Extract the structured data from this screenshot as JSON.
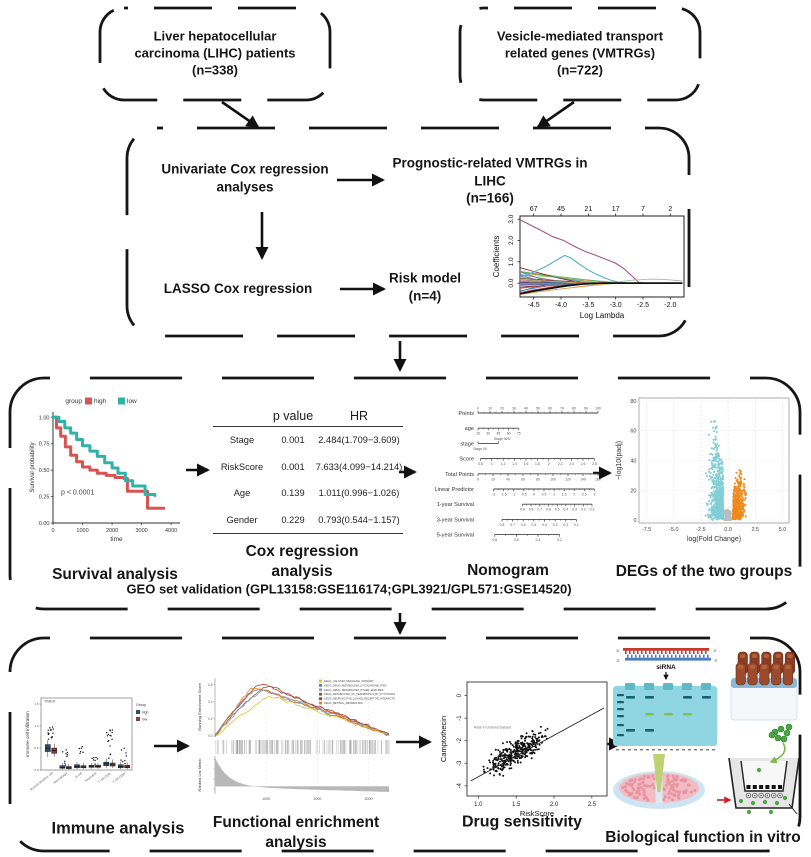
{
  "nodes": {
    "lihc": "Liver hepatocellular\ncarcinoma (LIHC) patients\n(n=338)",
    "vmtrg": "Vesicle-mediated transport\nrelated genes (VMTRGs)\n(n=722)",
    "univariate": "Univariate Cox regression\nanalyses",
    "prognostic": "Prognostic-related VMTRGs in LIHC\n(n=166)",
    "lasso": "LASSO Cox regression",
    "risk_model": "Risk model\n(n=4)"
  },
  "captions": {
    "survival": "Survival analysis",
    "cox": "Cox regression\nanalysis",
    "nomogram": "Nomogram",
    "degs": "DEGs of the two groups",
    "geo": "GEO set validation (GPL13158:GSE116174;GPL3921/GPL571:GSE14520)",
    "immune": "Immune analysis",
    "enrichment": "Functional enrichment\nanalysis",
    "drug": "Drug sensitivity",
    "invitro": "Biological function in vitro"
  },
  "cox_table": {
    "headers": [
      "p value",
      "HR"
    ],
    "rows": [
      {
        "var": "Stage",
        "p": "0.001",
        "hr": "2.484(1.709−3.609)"
      },
      {
        "var": "RiskScore",
        "p": "0.001",
        "hr": "7.633(4.099−14.214)"
      },
      {
        "var": "Age",
        "p": "0.139",
        "hr": "1.011(0.996−1.026)"
      },
      {
        "var": "Gender",
        "p": "0.229",
        "hr": "0.793(0.544−1.157)"
      }
    ]
  },
  "invitro": {
    "sirna": "siRNA",
    "five_prime": "5'",
    "three_prime": "3'"
  },
  "chart_data": [
    {
      "id": "lasso",
      "type": "line",
      "xlabel": "Log Lambda",
      "ylabel": "Coefficients",
      "top_axis": [
        "67",
        "45",
        "21",
        "17",
        "7",
        "2"
      ],
      "x_ticks": [
        "-4.5",
        "-4.0",
        "-3.5",
        "-3.0",
        "-2.5",
        "-2.0"
      ],
      "y_ticks": [
        "0.0",
        "1.0",
        "2.0",
        "3.0"
      ],
      "xlim": [
        -4.75,
        -1.75
      ],
      "ylim": [
        -0.65,
        3.15
      ],
      "noise_lines": 42,
      "palette": [
        "#777777",
        "#c44e52",
        "#4c72b0",
        "#55a868",
        "#8172b2",
        "#ccb974",
        "#64b5cd",
        "#d65f5f",
        "#2f7ed8",
        "#8bbc21",
        "#1aadce",
        "#910000",
        "#492970",
        "#f28f43",
        "#77a1e5",
        "#c42525",
        "#a6c96a",
        "#3b6e8f"
      ],
      "series": [
        {
          "name": "top-coefficient",
          "color": "#a8538e",
          "width": 1.1,
          "points": [
            [
              -4.75,
              2.97
            ],
            [
              -4.55,
              2.72
            ],
            [
              -4.35,
              2.45
            ],
            [
              -4.15,
              2.18
            ],
            [
              -3.95,
              2.0
            ],
            [
              -3.75,
              1.72
            ],
            [
              -3.55,
              1.48
            ],
            [
              -3.38,
              1.32
            ],
            [
              -3.18,
              1.12
            ],
            [
              -3.0,
              0.93
            ],
            [
              -2.85,
              0.68
            ],
            [
              -2.7,
              0.33
            ],
            [
              -2.58,
              0.04
            ],
            [
              -2.5,
              0.0
            ],
            [
              -1.78,
              0.0
            ]
          ]
        },
        {
          "name": "second-coefficient",
          "color": "#4fb2cd",
          "width": 1.1,
          "points": [
            [
              -4.75,
              0.3
            ],
            [
              -4.5,
              0.52
            ],
            [
              -4.28,
              0.78
            ],
            [
              -4.08,
              1.08
            ],
            [
              -3.93,
              1.3
            ],
            [
              -3.82,
              1.18
            ],
            [
              -3.68,
              0.92
            ],
            [
              -3.52,
              0.65
            ],
            [
              -3.38,
              0.45
            ],
            [
              -3.22,
              0.27
            ],
            [
              -3.08,
              0.13
            ],
            [
              -2.92,
              0.04
            ],
            [
              -2.78,
              0.0
            ],
            [
              -1.78,
              0.0
            ]
          ]
        },
        {
          "name": "late-coefficient",
          "color": "#9fbf9a",
          "width": 0.9,
          "points": [
            [
              -3.05,
              0.02
            ],
            [
              -2.7,
              0.14
            ],
            [
              -2.35,
              0.19
            ],
            [
              -2.05,
              0.16
            ],
            [
              -1.78,
              0.1
            ]
          ]
        },
        {
          "name": "negative-path",
          "color": "#111111",
          "width": 1.8,
          "points": [
            [
              -4.75,
              -0.5
            ],
            [
              -4.5,
              -0.37
            ],
            [
              -4.2,
              -0.24
            ],
            [
              -3.9,
              -0.12
            ],
            [
              -3.6,
              -0.04
            ],
            [
              -3.3,
              0.0
            ],
            [
              -1.78,
              0.0
            ]
          ]
        }
      ]
    },
    {
      "id": "km",
      "type": "line",
      "xlabel": "time",
      "ylabel": "Survival probability",
      "legend_title": "group",
      "pvalue": "p < 0.0001",
      "x_ticks": [
        0,
        1000,
        2000,
        3000,
        4000
      ],
      "y_ticks": [
        "0.00",
        "0.25",
        "0.50",
        "0.75",
        "1.00"
      ],
      "series": [
        {
          "name": "high",
          "color": "#d95353",
          "points": [
            [
              0,
              1.0
            ],
            [
              120,
              0.9
            ],
            [
              260,
              0.82
            ],
            [
              420,
              0.72
            ],
            [
              600,
              0.64
            ],
            [
              800,
              0.58
            ],
            [
              1000,
              0.53
            ],
            [
              1250,
              0.5
            ],
            [
              1500,
              0.47
            ],
            [
              1800,
              0.45
            ],
            [
              2100,
              0.43
            ],
            [
              2400,
              0.42
            ],
            [
              2520,
              0.3
            ],
            [
              3100,
              0.3
            ],
            [
              3200,
              0.14
            ],
            [
              3750,
              0.14
            ]
          ]
        },
        {
          "name": "low",
          "color": "#2fb3a9",
          "points": [
            [
              0,
              1.0
            ],
            [
              200,
              0.96
            ],
            [
              400,
              0.9
            ],
            [
              600,
              0.85
            ],
            [
              800,
              0.79
            ],
            [
              1000,
              0.73
            ],
            [
              1250,
              0.68
            ],
            [
              1500,
              0.63
            ],
            [
              1750,
              0.57
            ],
            [
              2000,
              0.52
            ],
            [
              2200,
              0.47
            ],
            [
              2450,
              0.4
            ],
            [
              2700,
              0.35
            ],
            [
              3050,
              0.35
            ],
            [
              3120,
              0.27
            ],
            [
              3450,
              0.26
            ]
          ]
        }
      ]
    },
    {
      "id": "nomogram",
      "type": "nomogram",
      "rows": [
        {
          "label": "Points",
          "span": [
            0.0,
            1.0
          ],
          "above": true,
          "ticks": [
            "0",
            "10",
            "20",
            "30",
            "40",
            "50",
            "60",
            "70",
            "80",
            "90",
            "100"
          ]
        },
        {
          "label": "age",
          "span": [
            0.0,
            0.34
          ],
          "ticks": [
            "15",
            "30",
            "45",
            "60",
            "75"
          ]
        },
        {
          "label": "stage",
          "span": [
            0.0,
            0.17
          ],
          "ticks": [],
          "above_text": "Stage III/IV",
          "below_text": "Stage I/II"
        },
        {
          "label": "Score",
          "span": [
            0.02,
            0.97
          ],
          "ticks": [
            "0.8",
            "1",
            "1.2",
            "1.4",
            "1.6",
            "1.8",
            "2",
            "2.2",
            "2.4",
            "2.6",
            "2.8"
          ]
        },
        {
          "label": "Total Points",
          "span": [
            0.0,
            1.0
          ],
          "ticks": [
            "0",
            "20",
            "40",
            "60",
            "80",
            "100",
            "120",
            "140",
            "160"
          ]
        },
        {
          "label": "Linear Predictor",
          "span": [
            0.13,
            0.97
          ],
          "ticks": [
            "-2",
            "-1.5",
            "-1",
            "-0.5",
            "0",
            "0.5",
            "1",
            "1.5",
            "2",
            "2.5",
            "3"
          ]
        },
        {
          "label": "1-year Survival",
          "span": [
            0.37,
            0.95
          ],
          "ticks": [
            "0.9",
            "0.8",
            "0.7",
            "0.6",
            "0.5",
            "0.4",
            "0.3",
            "0.2",
            "0.1"
          ]
        },
        {
          "label": "3-year Survival",
          "span": [
            0.2,
            0.82
          ],
          "ticks": [
            "0.8",
            "0.7",
            "0.6",
            "0.5",
            "0.4",
            "0.3",
            "0.2",
            "0.1"
          ]
        },
        {
          "label": "5-year Survival",
          "span": [
            0.14,
            0.68
          ],
          "ticks": [
            "0.8",
            "0.6",
            "0.4",
            "0.2"
          ]
        }
      ]
    },
    {
      "id": "volcano",
      "type": "scatter",
      "xlabel": "log(Fold Change)",
      "ylabel": "−log10(padj)",
      "x_ticks": [
        "-7.5",
        "-5.0",
        "-2.5",
        "0.0",
        "2.5",
        "5.0"
      ],
      "y_ticks": [
        "0",
        "20",
        "40",
        "60",
        "80"
      ],
      "xlim": [
        -8.2,
        5.6
      ],
      "ylim": [
        -2,
        82
      ],
      "groups": [
        {
          "name": "down",
          "color": "#82ced6",
          "count": 760
        },
        {
          "name": "up",
          "color": "#ee8a1e",
          "count": 430
        },
        {
          "name": "not-significant",
          "color": "#bcbcbc",
          "count": 260
        }
      ]
    },
    {
      "id": "immune",
      "type": "box",
      "ylabel": "immune cell infiltration",
      "panel": "TIMER",
      "legend_title": "Group",
      "legend": [
        {
          "name": "high",
          "color": "#2e4a6e"
        },
        {
          "name": "low",
          "color": "#8c3a44"
        }
      ],
      "y_ticks": [
        "0.0",
        "0.5",
        "1.0",
        "1.5"
      ],
      "categories": [
        "Myeloid dendritic cell",
        "Macrophage",
        "B cell",
        "Neutrophil",
        "T cell CD4+",
        "T cell CD8+"
      ],
      "boxes": [
        {
          "high": [
            0.3,
            0.42,
            0.5,
            0.58,
            0.68
          ],
          "low": [
            0.3,
            0.38,
            0.44,
            0.5,
            0.6
          ],
          "out_max": 1.0,
          "out_n": 14
        },
        {
          "high": [
            0.01,
            0.04,
            0.06,
            0.1,
            0.16
          ],
          "low": [
            0.01,
            0.03,
            0.05,
            0.08,
            0.14
          ],
          "out_max": 0.5,
          "out_n": 9
        },
        {
          "high": [
            0.02,
            0.05,
            0.08,
            0.12,
            0.18
          ],
          "low": [
            0.02,
            0.05,
            0.07,
            0.1,
            0.16
          ],
          "out_max": 0.62,
          "out_n": 6
        },
        {
          "high": [
            0.03,
            0.06,
            0.08,
            0.11,
            0.16
          ],
          "low": [
            0.03,
            0.06,
            0.08,
            0.11,
            0.16
          ],
          "out_max": 0.3,
          "out_n": 7
        },
        {
          "high": [
            0.05,
            0.1,
            0.14,
            0.18,
            0.26
          ],
          "low": [
            0.05,
            0.09,
            0.12,
            0.16,
            0.24
          ],
          "out_max": 0.92,
          "out_n": 16
        },
        {
          "high": [
            0.02,
            0.05,
            0.08,
            0.12,
            0.18
          ],
          "low": [
            0.02,
            0.05,
            0.07,
            0.11,
            0.17
          ],
          "out_max": 0.5,
          "out_n": 8
        }
      ]
    },
    {
      "id": "gsea",
      "type": "line",
      "ylabel_top": "Running Enrichment Score",
      "ylabel_bottom": "Ranked List Metric",
      "x_ticks": [
        "1000",
        "2000",
        "3000"
      ],
      "y_ticks_top": [
        "0.0",
        "0.2",
        "0.4",
        "0.6"
      ],
      "x_max": 3400,
      "legend": [
        {
          "name": "KEGG_CALCIUM_SIGNALING_PATHWAY",
          "color": "#e6c229"
        },
        {
          "name": "KEGG_DRUG_METABOLISM_CYTOCHROME_P450",
          "color": "#5b84b1"
        },
        {
          "name": "KEGG_DRUG_METABOLISM_OTHER_ENZYMES",
          "color": "#8d9db6"
        },
        {
          "name": "KEGG_METABOLISM_OF_XENOBIOTICS_BY_CYTOCHROME_P450",
          "color": "#8c5a3a"
        },
        {
          "name": "KEGG_NEUROACTIVE_LIGAND_RECEPTOR_INTERACTION",
          "color": "#c0392b"
        },
        {
          "name": "KEGG_RETINOL_METABOLISM",
          "color": "#e67e22"
        }
      ],
      "curves": [
        {
          "peak": 0.62,
          "at": 820,
          "color": "#c0392b"
        },
        {
          "peak": 0.6,
          "at": 950,
          "color": "#8c5a3a"
        },
        {
          "peak": 0.57,
          "at": 760,
          "color": "#5b84b1"
        },
        {
          "peak": 0.55,
          "at": 880,
          "color": "#8d9db6"
        },
        {
          "peak": 0.47,
          "at": 1050,
          "color": "#e6c229"
        },
        {
          "peak": 0.58,
          "at": 700,
          "color": "#e67e22"
        }
      ]
    },
    {
      "id": "drug",
      "type": "scatter",
      "xlabel": "RiskScore",
      "ylabel": "Camptothecin",
      "inner_label": "Rank in Ordered Dataset",
      "x_ticks": [
        "1.0",
        "1.5",
        "2.0",
        "2.5"
      ],
      "y_ticks": [
        "0",
        "-1",
        "-2",
        "-3",
        "-4"
      ],
      "xlim": [
        0.85,
        2.7
      ],
      "ylim": [
        -4.45,
        0.6
      ],
      "count": 340,
      "trend": {
        "x1": 0.9,
        "y1": -3.78,
        "x2": 2.66,
        "y2": -0.55
      }
    }
  ]
}
